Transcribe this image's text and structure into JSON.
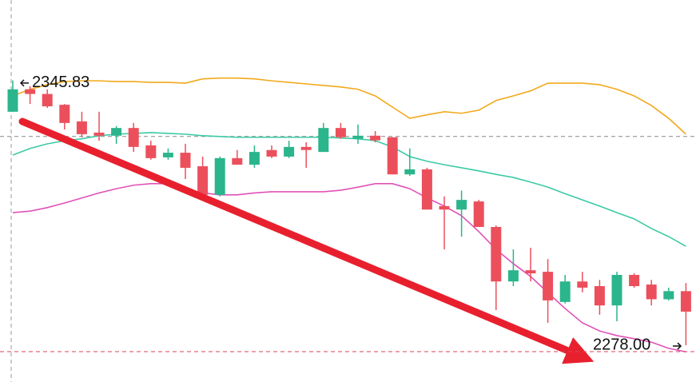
{
  "chart_data": {
    "type": "candlestick",
    "ylim": [
      2268.5,
      2367.3
    ],
    "up_color": "#2bb58c",
    "down_color": "#ec4f5c",
    "series": {
      "open": [
        2338.4,
        2344.2,
        2343.0,
        2340.2,
        2335.9,
        2333.0,
        2332.2,
        2334.2,
        2329.7,
        2326.6,
        2327.8,
        2324.3,
        2316.9,
        2326.4,
        2324.7,
        2328.5,
        2326.8,
        2329.3,
        2328.0,
        2334.2,
        2331.4,
        2332.2,
        2331.8,
        2322.2,
        2323.5,
        2314.0,
        2313.1,
        2315.2,
        2308.6,
        2294.5,
        2297.4,
        2297.0,
        2289.2,
        2294.5,
        2293.3,
        2288.3,
        2296.2,
        2293.7,
        2289.9,
        2292.0
      ],
      "high": [
        2346.5,
        2345.0,
        2344.2,
        2340.4,
        2338.4,
        2338.4,
        2334.7,
        2335.5,
        2330.9,
        2328.9,
        2330.1,
        2326.8,
        2326.8,
        2328.5,
        2329.7,
        2329.7,
        2330.9,
        2330.5,
        2335.5,
        2335.5,
        2335.1,
        2333.4,
        2331.8,
        2328.9,
        2323.9,
        2316.5,
        2318.0,
        2315.6,
        2309.0,
        2302.8,
        2303.2,
        2300.3,
        2296.2,
        2297.0,
        2294.9,
        2297.0,
        2296.6,
        2294.9,
        2292.9,
        2294.1
      ],
      "low": [
        2338.4,
        2340.4,
        2339.4,
        2333.8,
        2331.8,
        2330.9,
        2330.1,
        2328.0,
        2326.0,
        2326.0,
        2321.0,
        2316.5,
        2316.5,
        2324.7,
        2323.9,
        2326.4,
        2326.4,
        2323.9,
        2328.0,
        2331.4,
        2330.1,
        2330.5,
        2322.2,
        2321.8,
        2313.1,
        2302.8,
        2306.1,
        2308.6,
        2287.1,
        2293.3,
        2294.5,
        2283.8,
        2288.8,
        2291.7,
        2285.9,
        2284.2,
        2292.9,
        2288.3,
        2289.6,
        2278.0
      ],
      "close": [
        2344.2,
        2343.0,
        2339.8,
        2335.5,
        2332.6,
        2332.2,
        2334.2,
        2329.3,
        2326.4,
        2327.8,
        2323.9,
        2316.9,
        2326.4,
        2324.7,
        2328.0,
        2326.8,
        2329.3,
        2328.5,
        2334.2,
        2331.8,
        2332.2,
        2331.0,
        2322.2,
        2323.5,
        2313.1,
        2313.1,
        2315.6,
        2308.6,
        2294.5,
        2297.4,
        2296.6,
        2289.6,
        2294.5,
        2292.9,
        2288.3,
        2296.2,
        2293.3,
        2289.9,
        2292.0,
        2286.7
      ]
    },
    "bands": [
      {
        "color": "#f2a91c",
        "values": [
          2342.5,
          2344.2,
          2345.4,
          2346.2,
          2346.4,
          2346.4,
          2346.2,
          2346.2,
          2346.0,
          2346.0,
          2345.8,
          2346.9,
          2347.1,
          2347.1,
          2346.9,
          2346.4,
          2346.0,
          2345.6,
          2345.2,
          2344.8,
          2344.2,
          2342.5,
          2339.6,
          2336.7,
          2337.6,
          2338.4,
          2338.0,
          2338.8,
          2341.3,
          2342.5,
          2343.8,
          2345.8,
          2345.8,
          2345.8,
          2345.4,
          2344.2,
          2342.5,
          2340.0,
          2336.7,
          2332.6
        ]
      },
      {
        "color": "#3ccaa6",
        "values": [
          2327.2,
          2328.9,
          2330.1,
          2330.9,
          2331.4,
          2332.2,
          2332.6,
          2332.8,
          2333.0,
          2332.8,
          2332.6,
          2332.2,
          2332.0,
          2331.8,
          2331.8,
          2331.8,
          2331.8,
          2331.8,
          2331.8,
          2331.6,
          2331.4,
          2330.9,
          2329.3,
          2326.8,
          2325.6,
          2324.7,
          2323.9,
          2323.1,
          2322.2,
          2321.4,
          2320.2,
          2318.9,
          2317.2,
          2315.6,
          2314.0,
          2312.3,
          2310.7,
          2308.2,
          2306.1,
          2303.6
        ]
      },
      {
        "color": "#e052b8",
        "values": [
          2312.3,
          2312.7,
          2313.6,
          2314.8,
          2316.1,
          2317.4,
          2318.5,
          2319.4,
          2319.8,
          2319.8,
          2318.5,
          2317.4,
          2316.9,
          2316.9,
          2317.4,
          2317.7,
          2317.7,
          2317.7,
          2317.7,
          2318.1,
          2318.9,
          2319.8,
          2319.8,
          2318.5,
          2316.1,
          2314.0,
          2311.5,
          2307.4,
          2302.8,
          2299.1,
          2295.8,
          2291.6,
          2287.5,
          2283.8,
          2281.7,
          2280.5,
          2279.7,
          2278.8,
          2277.2,
          2276.3
        ]
      }
    ],
    "crosshair_y": 2332.0,
    "annotations": [
      {
        "value": 2345.83,
        "label": "2345.83"
      },
      {
        "value": 2278.0,
        "label": "2278.00"
      }
    ]
  }
}
